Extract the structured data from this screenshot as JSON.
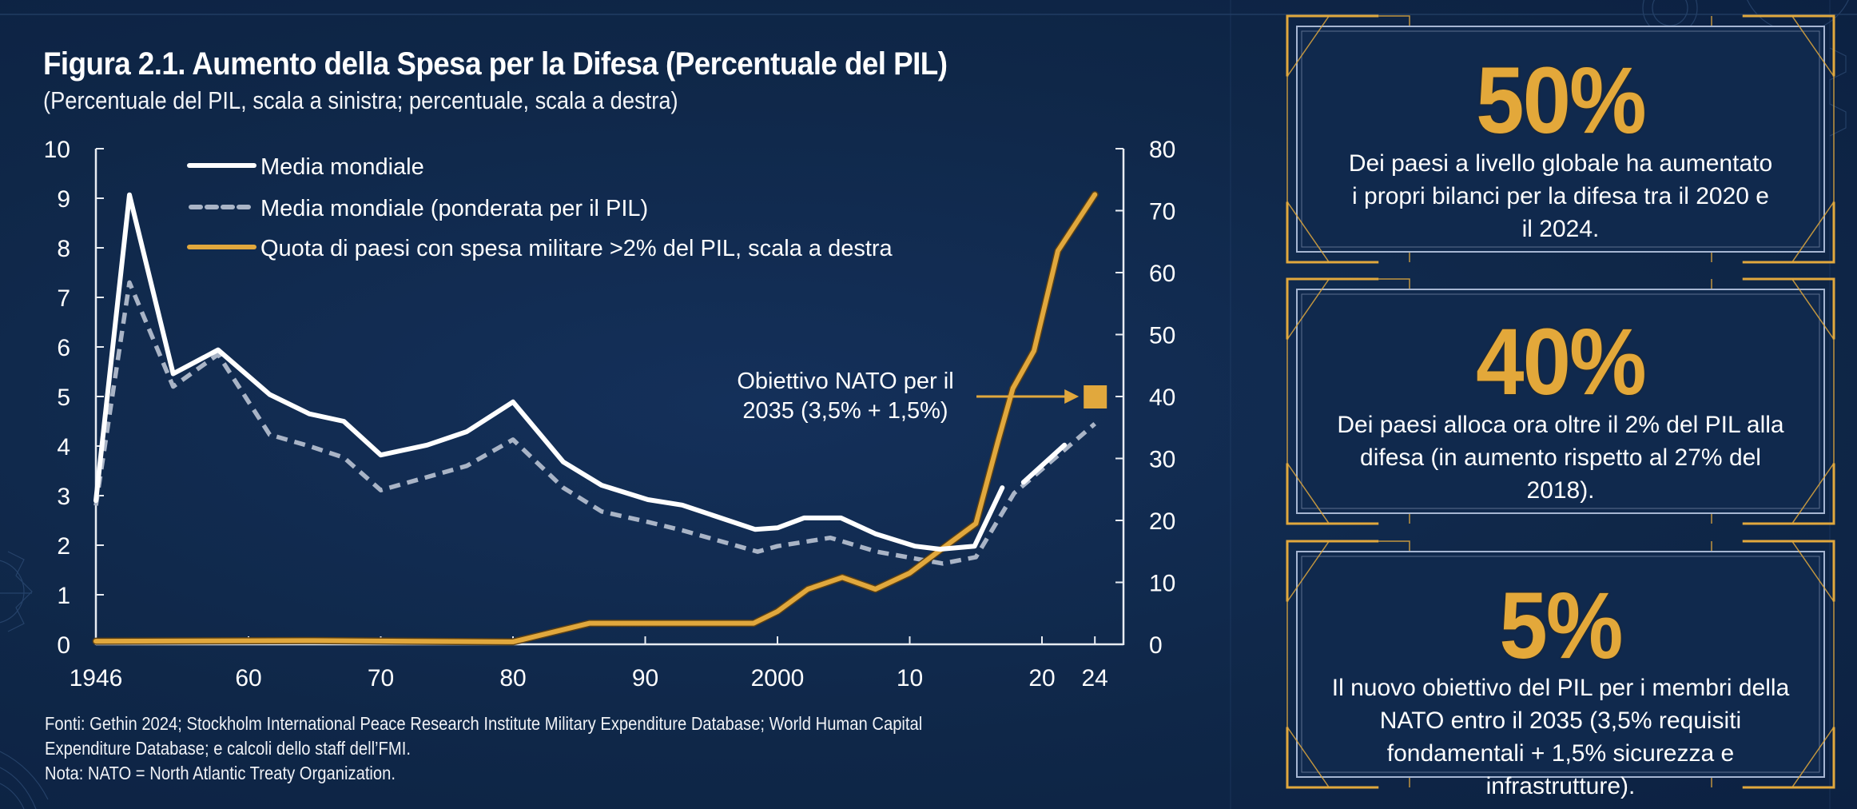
{
  "colors": {
    "background": "#0f2748",
    "gold": "#e1a83d",
    "white_line": "#ffffff",
    "dashed_line": "#a9b4c6",
    "card_border": "#a6b6d2"
  },
  "header": {
    "title": "Figura 2.1. Aumento della Spesa per la Difesa (Percentuale del PIL)",
    "subtitle": "(Percentuale del PIL, scala a sinistra; percentuale, scala a destra)"
  },
  "notes": {
    "line1": "Fonti: Gethin 2024; Stockholm International Peace Research Institute Military Expenditure Database; World Human Capital",
    "line2": "Expenditure Database; e calcoli dello staff dell’FMI.",
    "line3": "Nota: NATO = North Atlantic Treaty Organization."
  },
  "cards": [
    {
      "value": "50%",
      "lines": [
        "Dei paesi a livello globale ha aumentato",
        "i propri bilanci per la difesa tra il 2020 e",
        "il 2024."
      ]
    },
    {
      "value": "40%",
      "lines": [
        "Dei paesi alloca ora oltre il 2% del PIL alla",
        "difesa (in aumento rispetto al 27% del",
        "2018)."
      ]
    },
    {
      "value": "5%",
      "lines": [
        "Il nuovo obiettivo del PIL per i membri della",
        "NATO entro il 2035 (3,5% requisiti",
        "fondamentali + 1,5% sicurezza e infrastrutture)."
      ]
    }
  ],
  "chart_data": {
    "type": "line",
    "title": "Figura 2.1. Aumento della Spesa per la Difesa (Percentuale del PIL)",
    "subtitle": "(Percentuale del PIL, scala a sinistra; percentuale, scala a destra)",
    "xlabel": "",
    "ylabel_left": "Percentuale del PIL",
    "ylabel_right": "Percentuale",
    "xlim": [
      1946,
      2024
    ],
    "ylim_left": [
      0,
      10
    ],
    "ylim_right": [
      0,
      80
    ],
    "x_ticks": [
      {
        "year": 1946,
        "label": "1946"
      },
      {
        "year": 1960,
        "label": "60"
      },
      {
        "year": 1970,
        "label": "70"
      },
      {
        "year": 1980,
        "label": "80"
      },
      {
        "year": 1990,
        "label": "90"
      },
      {
        "year": 2000,
        "label": "2000"
      },
      {
        "year": 2010,
        "label": "10"
      },
      {
        "year": 2020,
        "label": "20"
      },
      {
        "year": 2024,
        "label": "24"
      }
    ],
    "y_ticks_left": [
      "0",
      "1",
      "2",
      "3",
      "4",
      "5",
      "6",
      "7",
      "8",
      "9",
      "10"
    ],
    "y_ticks_right": [
      "0",
      "10",
      "20",
      "30",
      "40",
      "50",
      "60",
      "70",
      "80"
    ],
    "grid": false,
    "legend_position": "top-left",
    "series": [
      {
        "name": "Media mondiale",
        "axis": "left",
        "style": "solid-white",
        "segments": [
          [
            [
              1946,
              2.9
            ],
            [
              1951,
              9.07
            ],
            [
              1954.3,
              5.46
            ],
            [
              1957.7,
              5.94
            ],
            [
              1961.6,
              5.04
            ],
            [
              1964.6,
              4.65
            ],
            [
              1967.2,
              4.5
            ],
            [
              1970,
              3.82
            ],
            [
              1973.5,
              4.02
            ],
            [
              1976.5,
              4.29
            ],
            [
              1980,
              4.89
            ],
            [
              1983.8,
              3.68
            ],
            [
              1986.7,
              3.21
            ],
            [
              1990.2,
              2.92
            ],
            [
              1992.8,
              2.81
            ],
            [
              1998.3,
              2.32
            ],
            [
              2000,
              2.35
            ],
            [
              2002,
              2.55
            ],
            [
              2004.8,
              2.55
            ],
            [
              2007.4,
              2.23
            ],
            [
              2010.4,
              1.98
            ],
            [
              2012.3,
              1.92
            ],
            [
              2014.9,
              1.98
            ],
            [
              2017,
              3.16
            ]
          ],
          [
            [
              2018.6,
              3.27
            ],
            [
              2021.7,
              4.02
            ]
          ]
        ]
      },
      {
        "name": "Media mondiale (ponderata per il PIL)",
        "axis": "left",
        "style": "dashed-gray",
        "segments": [
          [
            [
              1946,
              2.8
            ],
            [
              1951,
              7.3
            ],
            [
              1954.3,
              5.2
            ],
            [
              1957.7,
              5.85
            ],
            [
              1961.6,
              4.23
            ],
            [
              1964.6,
              4.0
            ],
            [
              1967.2,
              3.77
            ],
            [
              1970,
              3.11
            ],
            [
              1976.5,
              3.6
            ],
            [
              1980,
              4.13
            ],
            [
              1983.8,
              3.16
            ],
            [
              1986.7,
              2.68
            ],
            [
              1990.2,
              2.47
            ],
            [
              1992.8,
              2.3
            ],
            [
              1998.5,
              1.87
            ],
            [
              2000,
              1.98
            ],
            [
              2004,
              2.15
            ],
            [
              2007.5,
              1.87
            ],
            [
              2012.5,
              1.63
            ],
            [
              2015,
              1.76
            ],
            [
              2017.9,
              3.05
            ],
            [
              2024,
              4.45
            ]
          ]
        ]
      },
      {
        "name": "Quota di paesi con spesa militare >2% del PIL, scala a destra",
        "axis": "right",
        "style": "solid-gold",
        "segments": [
          [
            [
              1946,
              0.5
            ],
            [
              1965,
              0.6
            ],
            [
              1980,
              0.4
            ],
            [
              1985.8,
              3.4
            ],
            [
              1998.2,
              3.4
            ],
            [
              2000,
              5.3
            ],
            [
              2002.3,
              8.9
            ],
            [
              2004.9,
              10.8
            ],
            [
              2007.4,
              8.9
            ],
            [
              2010,
              11.5
            ],
            [
              2012.3,
              15.2
            ],
            [
              2015,
              19.5
            ],
            [
              2016.7,
              33
            ],
            [
              2017.8,
              41.3
            ],
            [
              2019.4,
              47.4
            ],
            [
              2021.2,
              63.5
            ],
            [
              2024,
              72.6
            ]
          ]
        ]
      }
    ],
    "annotations": [
      {
        "text_lines": [
          "Obiettivo NATO per il",
          "2035 (3,5% + 1,5%)"
        ],
        "target": {
          "year": 2024,
          "value_left": 5,
          "value_right": 40
        },
        "marker": "square-gold"
      }
    ]
  }
}
